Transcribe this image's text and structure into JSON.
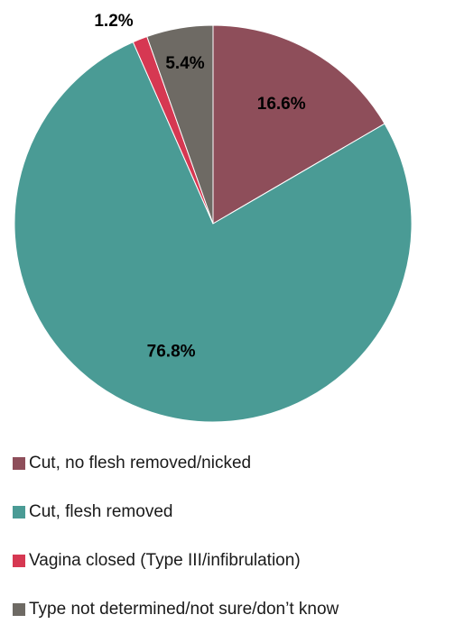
{
  "chart_data": {
    "type": "pie",
    "start_angle_deg": 0,
    "direction": "clockwise",
    "labels_format": "percent",
    "legend_position": "bottom-left",
    "slices": [
      {
        "name": "Cut, no flesh removed/nicked",
        "value": 16.6,
        "label": "16.6%",
        "color": "#8E4E5A"
      },
      {
        "name": "Cut, flesh removed",
        "value": 76.8,
        "label": "76.8%",
        "color": "#4A9B95"
      },
      {
        "name": "Vagina closed (Type III/infibrulation)",
        "value": 1.2,
        "label": "1.2%",
        "color": "#D63852"
      },
      {
        "name": "Type not determined/not sure/don’t know",
        "value": 5.4,
        "label": "5.4%",
        "color": "#6E6A64"
      }
    ]
  }
}
